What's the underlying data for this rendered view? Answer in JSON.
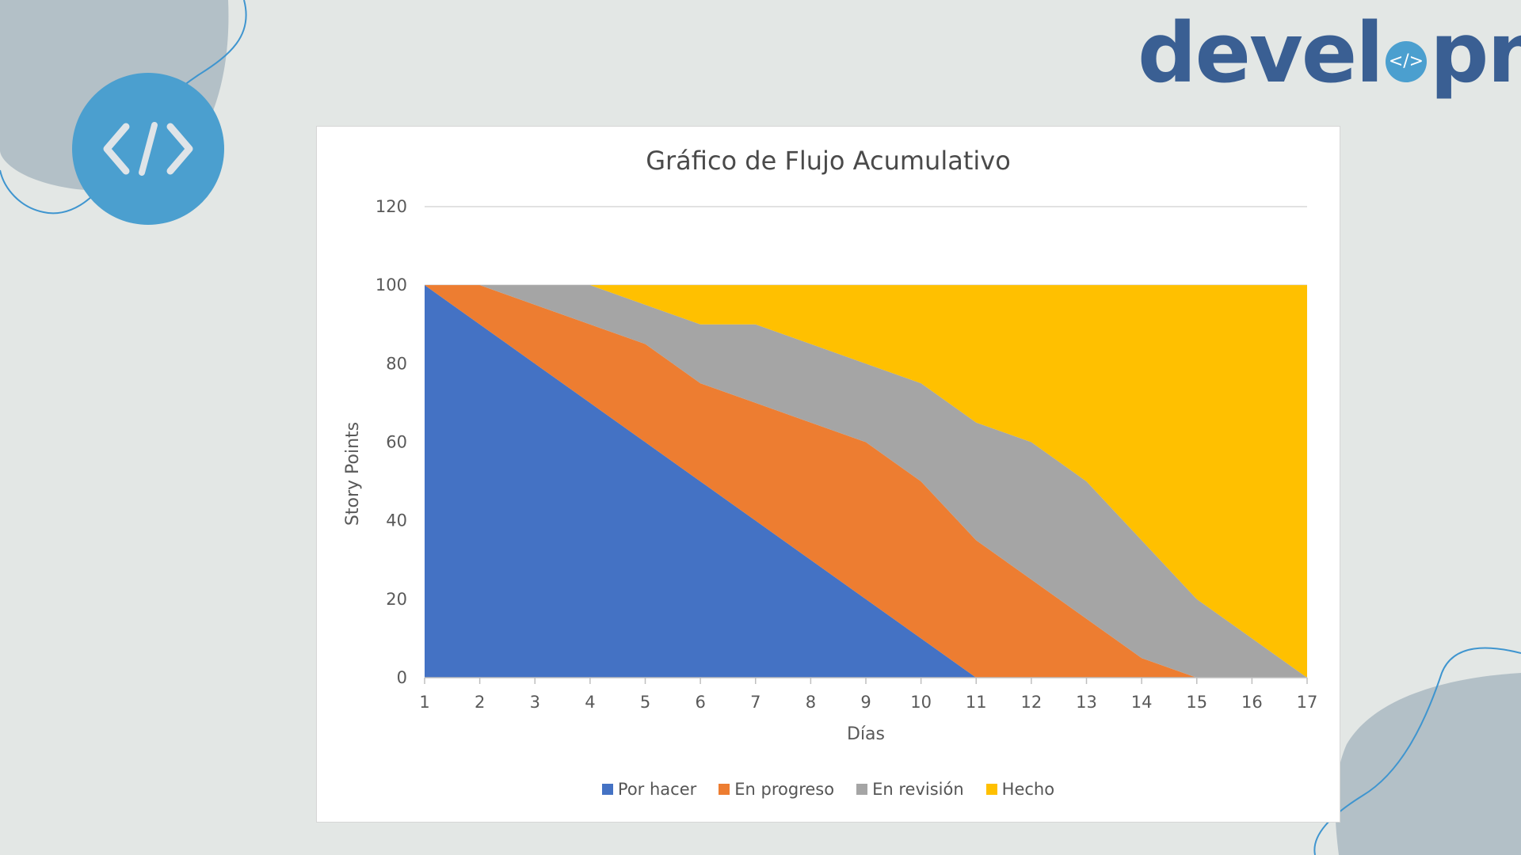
{
  "brand": {
    "logo_text_before": "devel",
    "logo_text_after": "pn",
    "logo_icon": "code-brackets-icon",
    "badge_icon": "code-brackets-icon",
    "accent_color": "#4b9fcf",
    "brand_color": "#3a5f93"
  },
  "chart_data": {
    "type": "area",
    "stacked": true,
    "title": "Gráfico de Flujo Acumulativo",
    "xlabel": "Días",
    "ylabel": "Story Points",
    "x": [
      1,
      2,
      3,
      4,
      5,
      6,
      7,
      8,
      9,
      10,
      11,
      12,
      13,
      14,
      15,
      16,
      17
    ],
    "ylim": [
      0,
      120
    ],
    "yticks": [
      0,
      20,
      40,
      60,
      80,
      100,
      120
    ],
    "grid": "horizontal",
    "legend_position": "bottom",
    "series": [
      {
        "name": "Por hacer",
        "color": "#4472c4",
        "values": [
          100,
          90,
          80,
          70,
          60,
          50,
          40,
          30,
          20,
          10,
          0,
          0,
          0,
          0,
          0,
          0,
          0
        ]
      },
      {
        "name": "En progreso",
        "color": "#ed7d31",
        "values": [
          0,
          10,
          15,
          20,
          25,
          25,
          30,
          35,
          40,
          40,
          35,
          25,
          15,
          5,
          0,
          0,
          0
        ]
      },
      {
        "name": "En revisión",
        "color": "#a5a5a5",
        "values": [
          0,
          0,
          5,
          10,
          10,
          15,
          20,
          20,
          20,
          25,
          30,
          35,
          35,
          30,
          20,
          10,
          0
        ]
      },
      {
        "name": "Hecho",
        "color": "#ffc000",
        "values": [
          0,
          0,
          0,
          0,
          5,
          10,
          10,
          15,
          20,
          25,
          35,
          40,
          50,
          65,
          80,
          90,
          100
        ]
      }
    ]
  }
}
